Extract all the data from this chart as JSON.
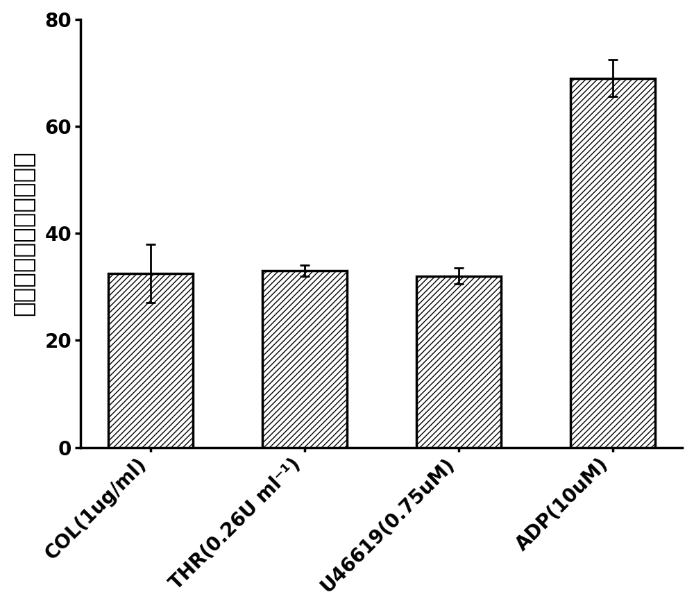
{
  "categories": [
    "COL(1ug/ml)",
    "THR(0.26U ml⁻¹)",
    "U46619(0.75uM)",
    "ADP(10uM)"
  ],
  "values": [
    32.5,
    33.0,
    32.0,
    69.0
  ],
  "errors": [
    5.5,
    1.0,
    1.5,
    3.5
  ],
  "ylabel": "血小板聚集抑制率（％）",
  "ylim": [
    0,
    80
  ],
  "yticks": [
    0,
    20,
    40,
    60,
    80
  ],
  "bar_color": "#ffffff",
  "bar_edgecolor": "#000000",
  "hatch": "////",
  "bar_width": 0.55,
  "figsize": [
    10.0,
    8.76
  ],
  "dpi": 100,
  "tick_fontsize": 20,
  "label_fontsize": 26,
  "spine_linewidth": 2.5,
  "capsize": 5,
  "error_linewidth": 2.0
}
